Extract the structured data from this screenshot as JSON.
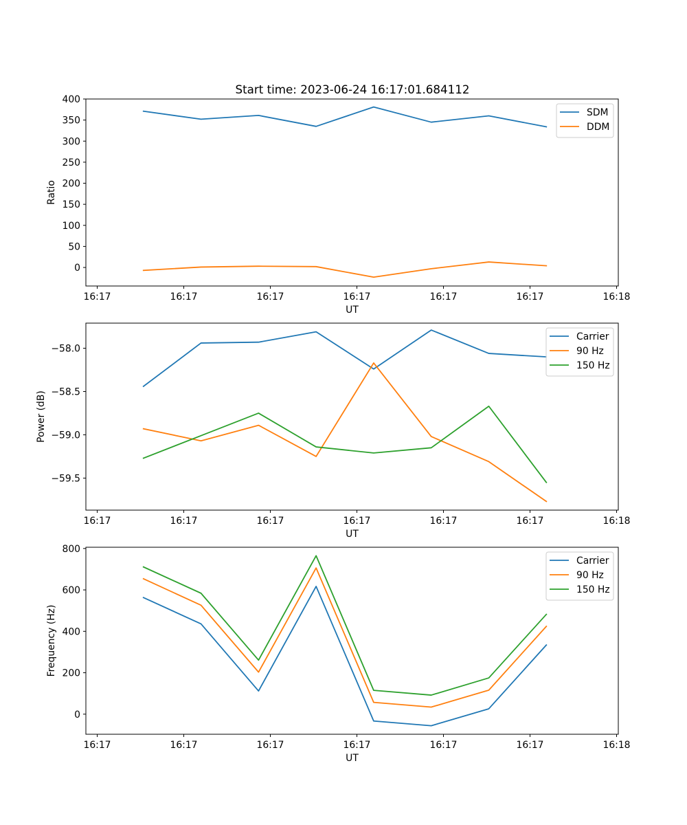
{
  "figure": {
    "title": "Start time: 2023-06-24 16:17:01.684112"
  },
  "chart_data": [
    {
      "type": "line",
      "title": "Start time: 2023-06-24 16:17:01.684112",
      "xlabel": "UT",
      "ylabel": "Ratio",
      "x_tick_labels": [
        "16:17",
        "16:17",
        "16:17",
        "16:17",
        "16:17",
        "16:17",
        "16:18"
      ],
      "y_ticks": [
        0,
        50,
        100,
        150,
        200,
        250,
        300,
        350,
        400
      ],
      "y_tick_labels": [
        "0",
        "50",
        "100",
        "150",
        "200",
        "250",
        "300",
        "350",
        "400"
      ],
      "xlim": [
        0,
        9.25
      ],
      "ylim": [
        -44,
        400
      ],
      "x": [
        1,
        2,
        3,
        4,
        5,
        6,
        7,
        8
      ],
      "legend_position": "top-right",
      "series": [
        {
          "name": "SDM",
          "color": "#1f77b4",
          "values": [
            371,
            352,
            361,
            335,
            381,
            345,
            360,
            334
          ]
        },
        {
          "name": "DDM",
          "color": "#ff7f0e",
          "values": [
            -7,
            1,
            3,
            2,
            -23,
            -3,
            13,
            4
          ]
        }
      ]
    },
    {
      "type": "line",
      "title": "",
      "xlabel": "UT",
      "ylabel": "Power (dB)",
      "x_tick_labels": [
        "16:17",
        "16:17",
        "16:17",
        "16:17",
        "16:17",
        "16:17",
        "16:18"
      ],
      "y_ticks": [
        -58.0,
        -58.5,
        -59.0,
        -59.5
      ],
      "y_tick_labels": [
        "−58.0",
        "−58.5",
        "−59.0",
        "−59.5"
      ],
      "xlim": [
        0,
        9.25
      ],
      "ylim": [
        -59.87,
        -57.71
      ],
      "x": [
        1,
        2,
        3,
        4,
        5,
        6,
        7,
        8
      ],
      "legend_position": "top-right",
      "series": [
        {
          "name": "Carrier",
          "color": "#1f77b4",
          "values": [
            -58.44,
            -57.94,
            -57.93,
            -57.81,
            -58.24,
            -57.79,
            -58.06,
            -58.1
          ]
        },
        {
          "name": "90 Hz",
          "color": "#ff7f0e",
          "values": [
            -58.93,
            -59.07,
            -58.89,
            -59.25,
            -58.17,
            -59.02,
            -59.31,
            -59.77
          ]
        },
        {
          "name": "150 Hz",
          "color": "#2ca02c",
          "values": [
            -59.27,
            -59.01,
            -58.75,
            -59.14,
            -59.21,
            -59.15,
            -58.67,
            -59.55
          ]
        }
      ]
    },
    {
      "type": "line",
      "title": "",
      "xlabel": "UT",
      "ylabel": "Frequency (Hz)",
      "x_tick_labels": [
        "16:17",
        "16:17",
        "16:17",
        "16:17",
        "16:17",
        "16:17",
        "16:18"
      ],
      "y_ticks": [
        0,
        200,
        400,
        600,
        800
      ],
      "y_tick_labels": [
        "0",
        "200",
        "400",
        "600",
        "800"
      ],
      "xlim": [
        0,
        9.25
      ],
      "ylim": [
        -97,
        806
      ],
      "x": [
        1,
        2,
        3,
        4,
        5,
        6,
        7,
        8
      ],
      "legend_position": "top-right",
      "series": [
        {
          "name": "Carrier",
          "color": "#1f77b4",
          "values": [
            563,
            436,
            112,
            617,
            -33,
            -56,
            26,
            334
          ]
        },
        {
          "name": "90 Hz",
          "color": "#ff7f0e",
          "values": [
            654,
            526,
            203,
            706,
            57,
            34,
            116,
            424
          ]
        },
        {
          "name": "150 Hz",
          "color": "#2ca02c",
          "values": [
            711,
            584,
            261,
            765,
            115,
            92,
            175,
            482
          ]
        }
      ]
    }
  ]
}
